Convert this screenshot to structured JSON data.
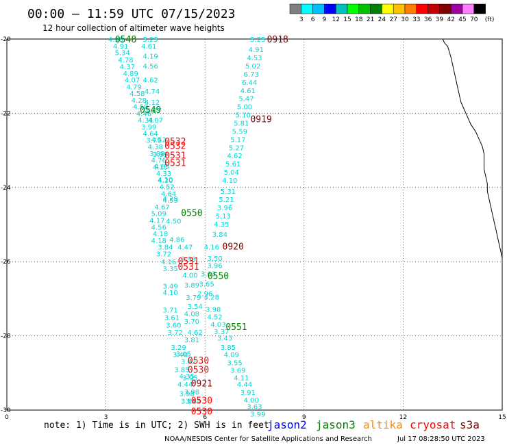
{
  "header": {
    "title": "00:00 — 11:59 UTC 07/15/2023",
    "subtitle": "12 hour collection of altimeter wave heights"
  },
  "legend": {
    "levels": [
      "3",
      "6",
      "9",
      "12",
      "15",
      "18",
      "21",
      "24",
      "27",
      "30",
      "33",
      "36",
      "39",
      "42",
      "45",
      "70"
    ],
    "unit": "(ft)",
    "colors": [
      "#808080",
      "#00ffff",
      "#00bfff",
      "#0000ff",
      "#00bfbf",
      "#00ff00",
      "#00c000",
      "#008000",
      "#ffff00",
      "#ffc000",
      "#ff8000",
      "#ff0000",
      "#c00000",
      "#800000",
      "#a000a0",
      "#ff80ff",
      "#000000"
    ]
  },
  "axes": {
    "x_ticks": [
      "0",
      "3",
      "6",
      "9",
      "12",
      "15"
    ],
    "y_ticks": [
      "-20",
      "-22",
      "-24",
      "-26",
      "-28",
      "-30"
    ],
    "x_range": [
      0,
      15
    ],
    "y_range": [
      -20,
      -30
    ],
    "grid": true
  },
  "footer": {
    "note": "note: 1) Time is in UTC; 2) SWH is in feet",
    "credit": "NOAA/NESDIS Center for Satellite Applications and Research",
    "timestamp": "Jul 17 08:28:50 UTC 2023",
    "satellites": [
      {
        "name": "jason2",
        "color": "#0000ff"
      },
      {
        "name": "jason3",
        "color": "#008000"
      },
      {
        "name": "altika",
        "color": "#ff8c00"
      },
      {
        "name": "cryosat",
        "color": "#ff0000"
      },
      {
        "name": "s3a",
        "color": "#800000"
      }
    ]
  },
  "colors": {
    "value": "#00d4d4",
    "jason3": "#008000",
    "cryosat": "#ff0000",
    "s3a": "#800000",
    "coast": "#000000"
  },
  "chart_data": {
    "type": "scatter",
    "tracks": [
      {
        "name": "track-a",
        "points": [
          {
            "lon": 3.3,
            "lat": -20.0,
            "v": "4.98"
          },
          {
            "lon": 3.45,
            "lat": -20.18,
            "v": "4.91"
          },
          {
            "lon": 3.5,
            "lat": -20.36,
            "v": "5.34"
          },
          {
            "lon": 3.6,
            "lat": -20.55,
            "v": "4.78"
          },
          {
            "lon": 3.65,
            "lat": -20.74,
            "v": "4.37"
          },
          {
            "lon": 3.75,
            "lat": -20.92,
            "v": "4.89"
          },
          {
            "lon": 3.8,
            "lat": -21.1,
            "v": "4.07"
          },
          {
            "lon": 3.85,
            "lat": -21.28,
            "v": "4.79"
          },
          {
            "lon": 3.95,
            "lat": -21.46,
            "v": "4.58"
          },
          {
            "lon": 4.0,
            "lat": -21.64,
            "v": "4.28"
          },
          {
            "lon": 4.05,
            "lat": -21.82,
            "v": "4.59"
          },
          {
            "lon": 4.15,
            "lat": -22.0,
            "v": "4.46"
          },
          {
            "lon": 4.2,
            "lat": -22.18,
            "v": "4.34"
          },
          {
            "lon": 4.3,
            "lat": -22.36,
            "v": "3.99"
          },
          {
            "lon": 4.35,
            "lat": -22.54,
            "v": "4.64"
          },
          {
            "lon": 4.45,
            "lat": -22.72,
            "v": "3.79"
          },
          {
            "lon": 4.5,
            "lat": -22.9,
            "v": "4.38"
          },
          {
            "lon": 4.55,
            "lat": -23.08,
            "v": "3.88"
          },
          {
            "lon": 4.6,
            "lat": -23.26,
            "v": "4.76"
          },
          {
            "lon": 4.65,
            "lat": -23.44,
            "v": "4.15"
          },
          {
            "lon": 4.75,
            "lat": -23.62,
            "v": "4.33"
          },
          {
            "lon": 4.8,
            "lat": -23.8,
            "v": "4.20"
          },
          {
            "lon": 4.85,
            "lat": -23.98,
            "v": "4.52"
          },
          {
            "lon": 4.9,
            "lat": -24.16,
            "v": "4.64"
          },
          {
            "lon": 4.95,
            "lat": -24.34,
            "v": "4.53"
          },
          {
            "lon": 4.7,
            "lat": -24.52,
            "v": "4.67"
          },
          {
            "lon": 4.6,
            "lat": -24.7,
            "v": "5.09"
          },
          {
            "lon": 4.55,
            "lat": -24.88,
            "v": "4.17"
          },
          {
            "lon": 4.6,
            "lat": -25.06,
            "v": "4.56"
          },
          {
            "lon": 4.65,
            "lat": -25.24,
            "v": "4.18"
          },
          {
            "lon": 4.6,
            "lat": -25.42,
            "v": "4.18"
          },
          {
            "lon": 4.8,
            "lat": -25.6,
            "v": "3.84"
          },
          {
            "lon": 4.75,
            "lat": -25.78,
            "v": "3.72"
          },
          {
            "lon": 4.9,
            "lat": -26.0,
            "v": "4.16"
          },
          {
            "lon": 4.95,
            "lat": -26.18,
            "v": "3.35"
          },
          {
            "lon": 4.95,
            "lat": -26.65,
            "v": "3.49"
          },
          {
            "lon": 4.95,
            "lat": -26.83,
            "v": "4.10"
          },
          {
            "lon": 4.95,
            "lat": -27.3,
            "v": "3.71"
          },
          {
            "lon": 5.0,
            "lat": -27.5,
            "v": "3.61"
          },
          {
            "lon": 5.05,
            "lat": -27.7,
            "v": "3.60"
          },
          {
            "lon": 5.1,
            "lat": -27.9,
            "v": "3.72"
          },
          {
            "lon": 5.2,
            "lat": -28.3,
            "v": "3.29"
          },
          {
            "lon": 5.25,
            "lat": -28.5,
            "v": "3.40"
          },
          {
            "lon": 5.3,
            "lat": -28.9,
            "v": "3.85"
          },
          {
            "lon": 5.4,
            "lat": -29.3,
            "v": "4.44"
          },
          {
            "lon": 5.45,
            "lat": -29.55,
            "v": "3.98"
          },
          {
            "lon": 5.5,
            "lat": -29.75,
            "v": "3.84"
          }
        ]
      },
      {
        "name": "track-b",
        "points": [
          {
            "lon": 4.35,
            "lat": -20.0,
            "v": "5.25"
          },
          {
            "lon": 4.3,
            "lat": -20.18,
            "v": "4.61"
          },
          {
            "lon": 4.35,
            "lat": -20.45,
            "v": "4.19"
          },
          {
            "lon": 4.35,
            "lat": -20.72,
            "v": "4.56"
          },
          {
            "lon": 4.35,
            "lat": -21.1,
            "v": "4.62"
          },
          {
            "lon": 4.4,
            "lat": -21.4,
            "v": "4.74"
          },
          {
            "lon": 4.4,
            "lat": -21.7,
            "v": "4.12"
          },
          {
            "lon": 4.45,
            "lat": -21.92,
            "v": "4.07"
          },
          {
            "lon": 4.5,
            "lat": -22.18,
            "v": "4.07"
          },
          {
            "lon": 4.6,
            "lat": -22.7,
            "v": "4.52"
          },
          {
            "lon": 4.65,
            "lat": -23.1,
            "v": "3.99"
          },
          {
            "lon": 4.7,
            "lat": -23.42,
            "v": "4.65"
          },
          {
            "lon": 4.8,
            "lat": -23.78,
            "v": "4.10"
          },
          {
            "lon": 4.95,
            "lat": -24.3,
            "v": "4.28"
          },
          {
            "lon": 5.05,
            "lat": -24.9,
            "v": "4.50"
          },
          {
            "lon": 5.15,
            "lat": -25.4,
            "v": "4.86"
          },
          {
            "lon": 5.4,
            "lat": -25.6,
            "v": "4.47"
          },
          {
            "lon": 5.5,
            "lat": -25.92,
            "v": "3.98"
          },
          {
            "lon": 5.55,
            "lat": -26.36,
            "v": "4.00"
          },
          {
            "lon": 5.6,
            "lat": -26.62,
            "v": "3.89"
          },
          {
            "lon": 5.65,
            "lat": -26.96,
            "v": "3.79"
          },
          {
            "lon": 5.7,
            "lat": -27.2,
            "v": "3.54"
          },
          {
            "lon": 5.6,
            "lat": -27.4,
            "v": "4.08"
          },
          {
            "lon": 5.6,
            "lat": -27.6,
            "v": "3.70"
          },
          {
            "lon": 5.7,
            "lat": -27.9,
            "v": "4.62"
          },
          {
            "lon": 5.6,
            "lat": -28.1,
            "v": "3.81"
          },
          {
            "lon": 5.35,
            "lat": -28.48,
            "v": "3.05"
          },
          {
            "lon": 5.5,
            "lat": -28.68,
            "v": "3.62"
          },
          {
            "lon": 5.45,
            "lat": -29.08,
            "v": "4.35"
          },
          {
            "lon": 5.55,
            "lat": -29.12,
            "v": "3.95"
          },
          {
            "lon": 5.6,
            "lat": -29.5,
            "v": "3.98"
          },
          {
            "lon": 5.65,
            "lat": -29.75,
            "v": "3.84"
          }
        ]
      },
      {
        "name": "track-c",
        "points": [
          {
            "lon": 6.2,
            "lat": -25.6,
            "v": "4.16"
          },
          {
            "lon": 6.3,
            "lat": -25.9,
            "v": "3.50"
          },
          {
            "lon": 6.3,
            "lat": -26.1,
            "v": "3.96"
          },
          {
            "lon": 6.1,
            "lat": -26.32,
            "v": "3.63"
          },
          {
            "lon": 6.05,
            "lat": -26.6,
            "v": "3.65"
          },
          {
            "lon": 6.0,
            "lat": -26.85,
            "v": "2.96"
          },
          {
            "lon": 6.2,
            "lat": -26.95,
            "v": "4.28"
          },
          {
            "lon": 6.25,
            "lat": -27.28,
            "v": "3.98"
          },
          {
            "lon": 6.3,
            "lat": -27.48,
            "v": "4.52"
          },
          {
            "lon": 6.4,
            "lat": -27.68,
            "v": "4.03"
          },
          {
            "lon": 6.5,
            "lat": -27.88,
            "v": "3.37"
          },
          {
            "lon": 6.6,
            "lat": -28.05,
            "v": "3.43"
          },
          {
            "lon": 6.7,
            "lat": -28.3,
            "v": "3.85"
          },
          {
            "lon": 6.8,
            "lat": -28.5,
            "v": "4.09"
          },
          {
            "lon": 6.9,
            "lat": -28.72,
            "v": "3.55"
          },
          {
            "lon": 7.0,
            "lat": -28.92,
            "v": "3.69"
          },
          {
            "lon": 7.1,
            "lat": -29.12,
            "v": "4.11"
          },
          {
            "lon": 7.2,
            "lat": -29.3,
            "v": "4.44"
          },
          {
            "lon": 7.3,
            "lat": -29.52,
            "v": "3.91"
          },
          {
            "lon": 7.4,
            "lat": -29.72,
            "v": "4.00"
          },
          {
            "lon": 7.5,
            "lat": -29.9,
            "v": "3.63"
          },
          {
            "lon": 7.6,
            "lat": -30.1,
            "v": "3.99"
          }
        ]
      },
      {
        "name": "track-d",
        "points": [
          {
            "lon": 7.6,
            "lat": -20.0,
            "v": "5.25"
          },
          {
            "lon": 7.55,
            "lat": -20.28,
            "v": "4.91"
          },
          {
            "lon": 7.5,
            "lat": -20.5,
            "v": "4.53"
          },
          {
            "lon": 7.45,
            "lat": -20.72,
            "v": "5.02"
          },
          {
            "lon": 7.4,
            "lat": -20.94,
            "v": "6.73"
          },
          {
            "lon": 7.35,
            "lat": -21.16,
            "v": "6.44"
          },
          {
            "lon": 7.3,
            "lat": -21.38,
            "v": "4.61"
          },
          {
            "lon": 7.25,
            "lat": -21.6,
            "v": "5.47"
          },
          {
            "lon": 7.2,
            "lat": -21.82,
            "v": "5.00"
          },
          {
            "lon": 7.15,
            "lat": -22.04,
            "v": "5.10"
          },
          {
            "lon": 7.1,
            "lat": -22.26,
            "v": "5.81"
          },
          {
            "lon": 7.05,
            "lat": -22.48,
            "v": "5.59"
          },
          {
            "lon": 7.0,
            "lat": -22.7,
            "v": "5.17"
          },
          {
            "lon": 6.95,
            "lat": -22.92,
            "v": "5.27"
          },
          {
            "lon": 6.9,
            "lat": -23.14,
            "v": "4.62"
          },
          {
            "lon": 6.85,
            "lat": -23.36,
            "v": "5.61"
          },
          {
            "lon": 6.8,
            "lat": -23.58,
            "v": "5.04"
          },
          {
            "lon": 6.75,
            "lat": -23.8,
            "v": "4.10"
          },
          {
            "lon": 6.7,
            "lat": -24.1,
            "v": "5.31"
          },
          {
            "lon": 6.65,
            "lat": -24.32,
            "v": "5.21"
          },
          {
            "lon": 6.6,
            "lat": -24.54,
            "v": "3.96"
          },
          {
            "lon": 6.55,
            "lat": -24.76,
            "v": "5.13"
          },
          {
            "lon": 6.5,
            "lat": -24.98,
            "v": "4.35"
          },
          {
            "lon": 6.45,
            "lat": -25.26,
            "v": "3.84"
          }
        ]
      }
    ],
    "time_labels": [
      {
        "text": "0548",
        "lon": 3.6,
        "lat": -20.0,
        "sat": "jason3"
      },
      {
        "text": "0549",
        "lon": 4.35,
        "lat": -21.9,
        "sat": "jason3"
      },
      {
        "text": "0532",
        "lon": 5.1,
        "lat": -22.75,
        "sat": "cryosat"
      },
      {
        "text": "0532",
        "lon": 5.1,
        "lat": -22.87,
        "sat": "cryosat"
      },
      {
        "text": "0531",
        "lon": 5.1,
        "lat": -23.13,
        "sat": "cryosat"
      },
      {
        "text": "0531",
        "lon": 5.1,
        "lat": -23.33,
        "sat": "cryosat"
      },
      {
        "text": "0550",
        "lon": 5.6,
        "lat": -24.68,
        "sat": "jason3"
      },
      {
        "text": "0531",
        "lon": 5.5,
        "lat": -25.98,
        "sat": "cryosat"
      },
      {
        "text": "0531",
        "lon": 5.5,
        "lat": -26.13,
        "sat": "cryosat"
      },
      {
        "text": "0550",
        "lon": 6.4,
        "lat": -26.37,
        "sat": "jason3"
      },
      {
        "text": "0551",
        "lon": 6.95,
        "lat": -27.75,
        "sat": "jason3"
      },
      {
        "text": "0530",
        "lon": 5.8,
        "lat": -28.65,
        "sat": "cryosat"
      },
      {
        "text": "0530",
        "lon": 5.8,
        "lat": -28.9,
        "sat": "cryosat"
      },
      {
        "text": "0921",
        "lon": 5.9,
        "lat": -29.27,
        "sat": "s3a"
      },
      {
        "text": "0530",
        "lon": 5.9,
        "lat": -29.73,
        "sat": "cryosat"
      },
      {
        "text": "0530",
        "lon": 5.9,
        "lat": -30.03,
        "sat": "cryosat"
      },
      {
        "text": "0918",
        "lon": 8.2,
        "lat": -20.0,
        "sat": "s3a"
      },
      {
        "text": "0919",
        "lon": 7.7,
        "lat": -22.15,
        "sat": "s3a"
      },
      {
        "text": "0920",
        "lon": 6.85,
        "lat": -25.58,
        "sat": "s3a"
      }
    ],
    "coastline": [
      [
        13.2,
        -20.0
      ],
      [
        13.25,
        -20.1
      ],
      [
        13.35,
        -20.2
      ],
      [
        13.4,
        -20.35
      ],
      [
        13.45,
        -20.5
      ],
      [
        13.5,
        -20.7
      ],
      [
        13.55,
        -20.9
      ],
      [
        13.6,
        -21.1
      ],
      [
        13.65,
        -21.3
      ],
      [
        13.7,
        -21.5
      ],
      [
        13.75,
        -21.7
      ],
      [
        13.85,
        -21.9
      ],
      [
        13.95,
        -22.1
      ],
      [
        14.05,
        -22.3
      ],
      [
        14.2,
        -22.5
      ],
      [
        14.3,
        -22.7
      ],
      [
        14.4,
        -22.9
      ],
      [
        14.45,
        -23.1
      ],
      [
        14.45,
        -23.3
      ],
      [
        14.45,
        -23.5
      ],
      [
        14.5,
        -23.7
      ],
      [
        14.55,
        -23.9
      ],
      [
        14.55,
        -24.1
      ],
      [
        14.6,
        -24.3
      ],
      [
        14.65,
        -24.5
      ],
      [
        14.7,
        -24.7
      ],
      [
        14.75,
        -24.9
      ],
      [
        14.8,
        -25.1
      ],
      [
        14.85,
        -25.3
      ],
      [
        14.9,
        -25.5
      ],
      [
        14.95,
        -25.7
      ],
      [
        15.0,
        -25.9
      ],
      [
        15.0,
        -26.0
      ]
    ]
  }
}
